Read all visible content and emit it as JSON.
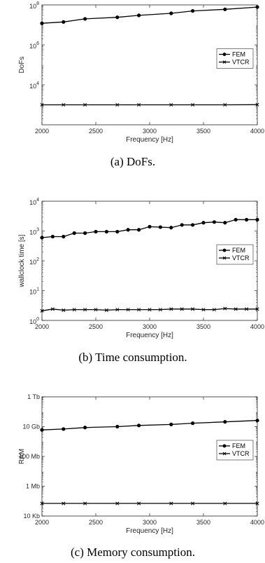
{
  "chart_data": [
    {
      "type": "line",
      "caption": "(a) DoFs.",
      "xlabel": "Frequency [Hz]",
      "ylabel": "DoFs",
      "yscale": "log",
      "xlim": [
        2000,
        4000
      ],
      "ylim": [
        100,
        100000000
      ],
      "x_ticks": [
        2000,
        2500,
        3000,
        3500,
        4000
      ],
      "y_ticks": [
        {
          "value": 1000000,
          "label_base": "10",
          "label_exp": "6"
        },
        {
          "value": 10000,
          "label_base": "10",
          "label_exp": "4"
        }
      ],
      "y_top_label": {
        "base": "10",
        "exp": "8"
      },
      "legend_position": "right",
      "series": [
        {
          "name": "FEM",
          "marker": "circle",
          "x": [
            2000,
            2200,
            2400,
            2700,
            2900,
            3200,
            3400,
            3700,
            4000
          ],
          "y": [
            12000000,
            14000000,
            20000000,
            24000000,
            30000000,
            38000000,
            50000000,
            60000000,
            78000000
          ]
        },
        {
          "name": "VTCR",
          "marker": "cross",
          "x": [
            2000,
            2200,
            2400,
            2700,
            2900,
            3200,
            3400,
            3700,
            4000
          ],
          "y": [
            1000,
            1000,
            1000,
            1000,
            1000,
            1000,
            1000,
            1000,
            1020
          ]
        }
      ]
    },
    {
      "type": "line",
      "caption": "(b) Time consumption.",
      "xlabel": "Frequency [Hz]",
      "ylabel": "wallclock time [s]",
      "yscale": "log",
      "xlim": [
        2000,
        4000
      ],
      "ylim": [
        1,
        10000
      ],
      "x_ticks": [
        2000,
        2500,
        3000,
        3500,
        4000
      ],
      "y_ticks": [
        {
          "value": 1,
          "label_base": "10",
          "label_exp": "0"
        },
        {
          "value": 10,
          "label_base": "10",
          "label_exp": "1"
        },
        {
          "value": 100,
          "label_base": "10",
          "label_exp": "2"
        },
        {
          "value": 1000,
          "label_base": "10",
          "label_exp": "3"
        },
        {
          "value": 10000,
          "label_base": "10",
          "label_exp": "4"
        }
      ],
      "legend_position": "right",
      "series": [
        {
          "name": "FEM",
          "marker": "circle",
          "x": [
            2000,
            2100,
            2200,
            2300,
            2400,
            2500,
            2600,
            2700,
            2800,
            2900,
            3000,
            3100,
            3200,
            3300,
            3400,
            3500,
            3600,
            3700,
            3800,
            3900,
            4000
          ],
          "y": [
            600,
            650,
            650,
            850,
            850,
            950,
            950,
            950,
            1100,
            1100,
            1400,
            1350,
            1300,
            1600,
            1600,
            1900,
            2000,
            1900,
            2400,
            2400,
            2400
          ]
        },
        {
          "name": "VTCR",
          "marker": "cross",
          "x": [
            2000,
            2100,
            2200,
            2300,
            2400,
            2500,
            2600,
            2700,
            2800,
            2900,
            3000,
            3100,
            3200,
            3300,
            3400,
            3500,
            3600,
            3700,
            3800,
            3900,
            4000
          ],
          "y": [
            2.1,
            2.4,
            2.2,
            2.3,
            2.3,
            2.3,
            2.2,
            2.3,
            2.3,
            2.3,
            2.3,
            2.3,
            2.4,
            2.4,
            2.4,
            2.3,
            2.3,
            2.5,
            2.4,
            2.4,
            2.4
          ]
        }
      ]
    },
    {
      "type": "line",
      "caption": "(c) Memory consumption.",
      "xlabel": "Frequency [Hz]",
      "ylabel": "RAM",
      "yscale": "log",
      "xlim": [
        2000,
        4000
      ],
      "ylim": [
        10,
        1000000000
      ],
      "x_ticks": [
        2000,
        2500,
        3000,
        3500,
        4000
      ],
      "y_ticks": [
        {
          "value": 1000000000,
          "label": "1 Tb"
        },
        {
          "value": 10000000,
          "label": "10 Gb"
        },
        {
          "value": 100000,
          "label": "100 Mb"
        },
        {
          "value": 1000,
          "label": "1 Mb"
        },
        {
          "value": 10,
          "label": "10 Kb"
        }
      ],
      "y_unit": "Kb",
      "legend_position": "right",
      "series": [
        {
          "name": "FEM",
          "marker": "circle",
          "x": [
            2000,
            2200,
            2400,
            2700,
            2900,
            3200,
            3400,
            3700,
            4000
          ],
          "y": [
            6000000,
            6900000,
            8700000,
            10000000,
            12000000,
            14000000,
            17000000,
            21000000,
            26000000
          ]
        },
        {
          "name": "VTCR",
          "marker": "cross",
          "x": [
            2000,
            2200,
            2400,
            2700,
            2900,
            3200,
            3400,
            3700,
            4000
          ],
          "y": [
            70,
            70,
            70,
            70,
            70,
            70,
            70,
            70,
            70
          ]
        }
      ]
    }
  ]
}
